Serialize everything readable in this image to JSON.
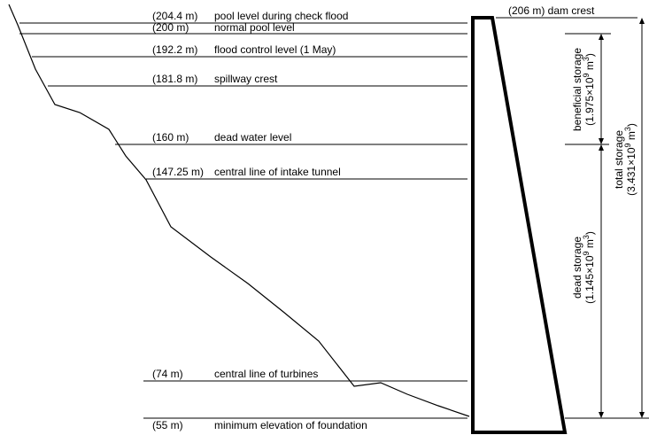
{
  "levels": [
    {
      "id": "check-flood",
      "elev": "(204.4 m)",
      "desc": "pool level during check flood"
    },
    {
      "id": "normal-pool",
      "elev": "(200 m)",
      "desc": "normal pool level"
    },
    {
      "id": "flood-control",
      "elev": "(192.2 m)",
      "desc": "flood control level (1 May)"
    },
    {
      "id": "spillway",
      "elev": "(181.8 m)",
      "desc": "spillway crest"
    },
    {
      "id": "dead-water",
      "elev": "(160 m)",
      "desc": "dead water level"
    },
    {
      "id": "intake",
      "elev": "(147.25 m)",
      "desc": "central line of intake tunnel"
    },
    {
      "id": "turbines",
      "elev": "(74 m)",
      "desc": "central line of turbines"
    },
    {
      "id": "foundation",
      "elev": "(55 m)",
      "desc": "minimum elevation of foundation"
    }
  ],
  "dam_crest": "(206 m) dam crest",
  "storages": {
    "beneficial": {
      "line1": "beneficial storage",
      "line2": "(1.975×10",
      "exp": "9",
      "unit": " m",
      "unit_exp": "3",
      "close": ")"
    },
    "dead": {
      "line1": "dead storage",
      "line2": "(1.145×10",
      "exp": "9",
      "unit": " m",
      "unit_exp": "3",
      "close": ")"
    },
    "total": {
      "line1": "total storage",
      "line2": "(3.431×10",
      "exp": "9",
      "unit": " m",
      "unit_exp": "3",
      "close": ")"
    }
  }
}
